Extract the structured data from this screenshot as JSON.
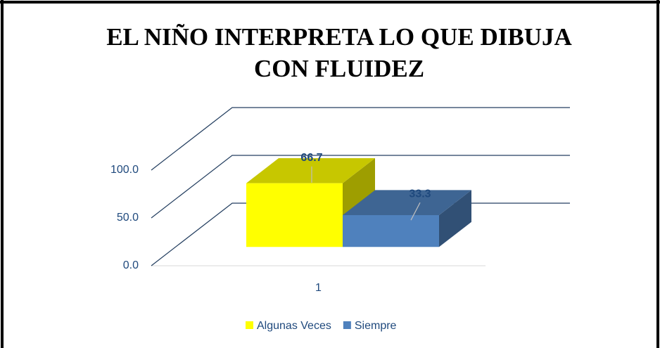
{
  "chart_data": {
    "type": "bar3d",
    "title": "EL NIÑO INTERPRETA LO QUE DIBUJA CON FLUIDEZ",
    "categories": [
      "1"
    ],
    "series": [
      {
        "name": "Algunas Veces",
        "color": "#ffff00",
        "values": [
          66.7
        ]
      },
      {
        "name": "Siempre",
        "color": "#4f81bd",
        "values": [
          33.3
        ]
      }
    ],
    "ylim": [
      0,
      100
    ],
    "yticks": [
      {
        "value": 0,
        "label": "0.0"
      },
      {
        "value": 50,
        "label": "50.0"
      },
      {
        "value": 100,
        "label": "100.0"
      }
    ],
    "grid": true,
    "legend": "bottom"
  }
}
